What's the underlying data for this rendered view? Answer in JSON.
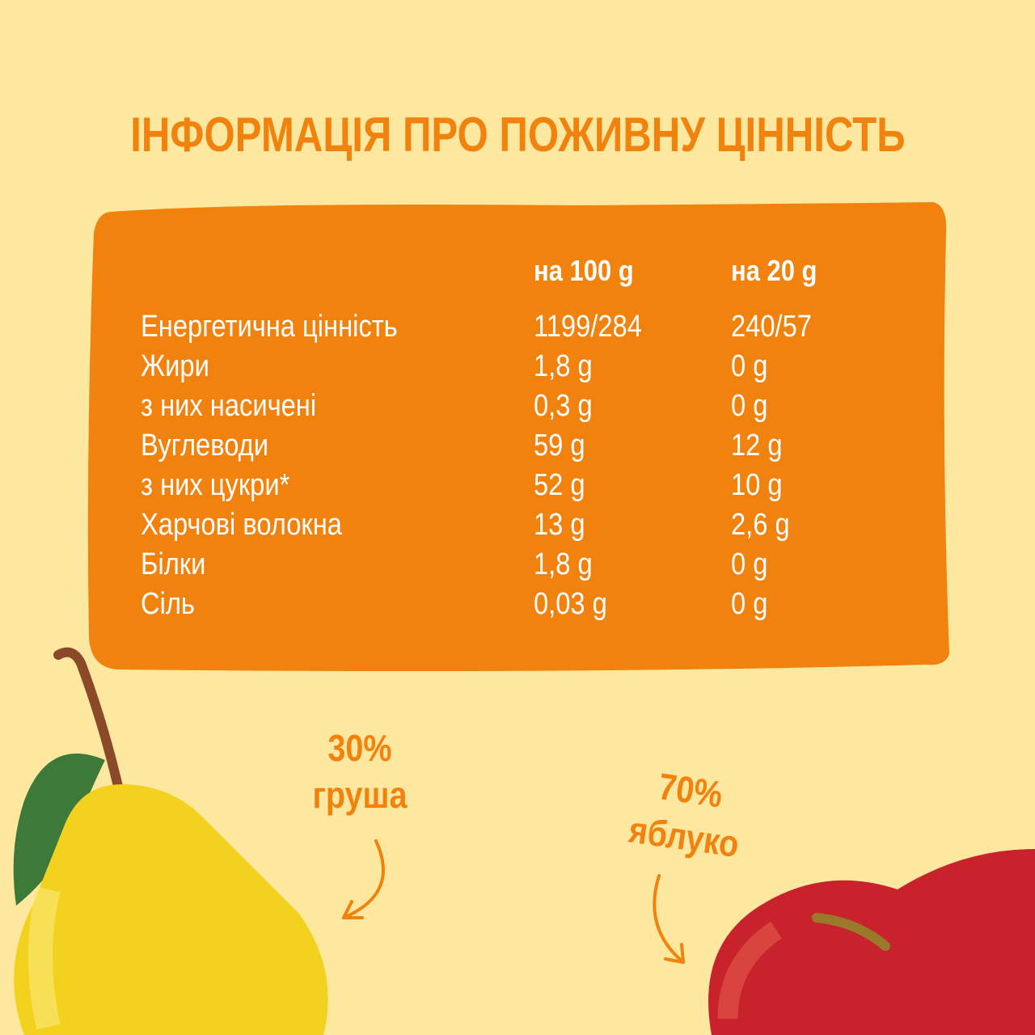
{
  "title": "ІНФОРМАЦІЯ ПРО ПОЖИВНУ ЦІННІСТЬ",
  "colors": {
    "background": "#fee8a0",
    "accent": "#f0820d",
    "text_on_accent": "#ffffff"
  },
  "table": {
    "columns": [
      "",
      "на 100 g",
      "на 20 g"
    ],
    "rows": [
      {
        "name": "Енергетична цінність",
        "per100": "1199/284",
        "per20": "240/57"
      },
      {
        "name": "Жири",
        "per100": "1,8 g",
        "per20": "0 g"
      },
      {
        "name": "з них насичені",
        "per100": "0,3 g",
        "per20": "0 g"
      },
      {
        "name": "Вуглеводи",
        "per100": "59 g",
        "per20": "12 g"
      },
      {
        "name": "з них цукри*",
        "per100": "52 g",
        "per20": "10 g"
      },
      {
        "name": "Харчові волокна",
        "per100": "13 g",
        "per20": "2,6 g"
      },
      {
        "name": "Білки",
        "per100": "1,8 g",
        "per20": "0 g"
      },
      {
        "name": "Сіль",
        "per100": "0,03 g",
        "per20": "0 g"
      }
    ]
  },
  "ingredients": [
    {
      "percent": "30%",
      "name": "груша",
      "icon": "pear-image"
    },
    {
      "percent": "70%",
      "name": "яблуко",
      "icon": "apple-image"
    }
  ]
}
